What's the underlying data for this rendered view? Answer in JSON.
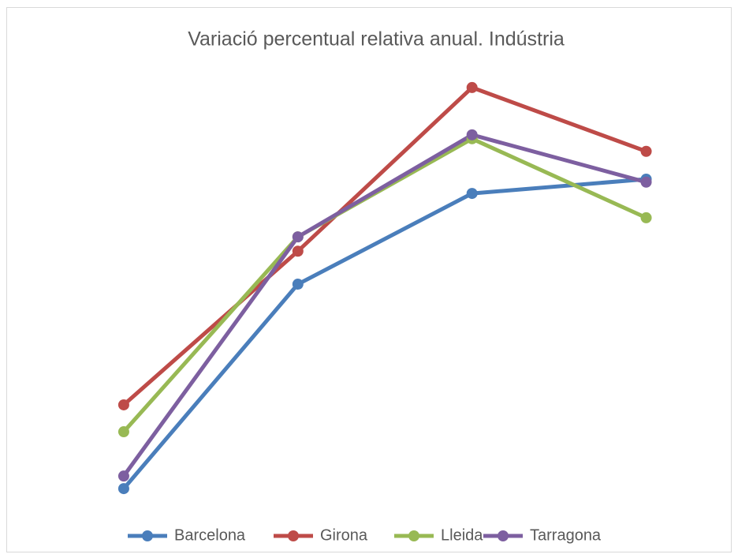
{
  "chart_data": {
    "type": "line",
    "title": "Variació  percentual relativa anual. Indústria",
    "categories": [
      null,
      null,
      null,
      null
    ],
    "ylim": [
      0,
      100
    ],
    "series": [
      {
        "name": "Barcelona",
        "color": "#4a7ebb",
        "values": [
          3.8,
          50.9,
          71.8,
          75.1
        ]
      },
      {
        "name": "Girona",
        "color": "#be4b48",
        "values": [
          23.1,
          58.5,
          96.2,
          81.5
        ]
      },
      {
        "name": "Lleida",
        "color": "#98b954",
        "values": [
          16.9,
          61.8,
          84.4,
          66.2
        ]
      },
      {
        "name": "Tarragona",
        "color": "#7d5fa0",
        "values": [
          6.7,
          61.8,
          85.3,
          74.4
        ]
      }
    ],
    "legend": "bottom"
  }
}
